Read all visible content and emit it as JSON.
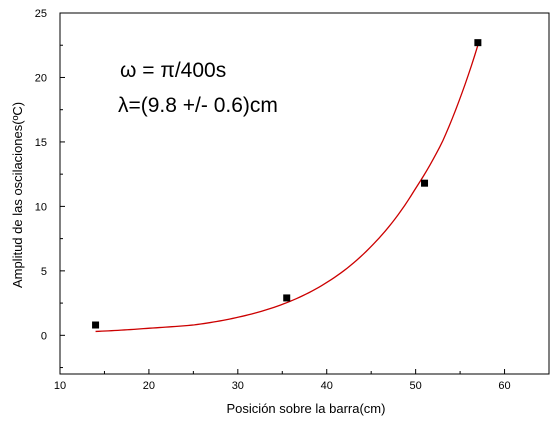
{
  "chart_data": {
    "type": "scatter",
    "title": "",
    "xlabel": "Posición sobre la barra(cm)",
    "ylabel": "Amplitud de las oscilaciones(ºC)",
    "xlim": [
      10,
      65
    ],
    "ylim": [
      -3,
      25
    ],
    "x_ticks": [
      "10",
      "20",
      "30",
      "40",
      "50",
      "60"
    ],
    "y_ticks": [
      "0",
      "5",
      "10",
      "15",
      "20",
      "25"
    ],
    "grid": false,
    "legend": "none",
    "series": [
      {
        "marker": "square",
        "color": "#000000",
        "points": [
          {
            "x": 14.0,
            "y": 0.8
          },
          {
            "x": 35.5,
            "y": 2.9
          },
          {
            "x": 51.0,
            "y": 11.8
          },
          {
            "x": 57.0,
            "y": 22.7
          }
        ]
      }
    ],
    "fit": {
      "model": "exponential",
      "color": "#cc0000",
      "x_range": [
        14.0,
        57.0
      ],
      "samples": [
        {
          "x": 14.0,
          "y": 0.3
        },
        {
          "x": 20.0,
          "y": 0.55
        },
        {
          "x": 25.0,
          "y": 0.8
        },
        {
          "x": 30.0,
          "y": 1.4
        },
        {
          "x": 35.0,
          "y": 2.4
        },
        {
          "x": 40.0,
          "y": 4.1
        },
        {
          "x": 45.0,
          "y": 6.9
        },
        {
          "x": 50.0,
          "y": 11.4
        },
        {
          "x": 53.0,
          "y": 15.0
        },
        {
          "x": 55.0,
          "y": 18.4
        },
        {
          "x": 57.0,
          "y": 22.5
        }
      ]
    },
    "annotations": [
      {
        "text": "ω = π/400s"
      },
      {
        "text": "λ=(9.8 +/- 0.6)cm"
      }
    ]
  }
}
